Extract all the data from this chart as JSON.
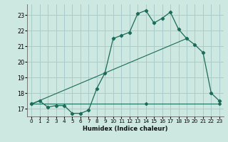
{
  "title": "",
  "xlabel": "Humidex (Indice chaleur)",
  "background_color": "#cce8e0",
  "grid_color": "#aacccc",
  "line_color": "#1a6b5a",
  "xlim": [
    -0.5,
    23.5
  ],
  "ylim": [
    16.5,
    23.7
  ],
  "yticks": [
    17,
    18,
    19,
    20,
    21,
    22,
    23
  ],
  "xticks": [
    0,
    1,
    2,
    3,
    4,
    5,
    6,
    7,
    8,
    9,
    10,
    11,
    12,
    13,
    14,
    15,
    16,
    17,
    18,
    19,
    20,
    21,
    22,
    23
  ],
  "line1_x": [
    0,
    1,
    2,
    3,
    4,
    5,
    6,
    7,
    8,
    9,
    10,
    11,
    12,
    13,
    14,
    15,
    16,
    17,
    18,
    19,
    20,
    21,
    22,
    23
  ],
  "line1_y": [
    17.3,
    17.5,
    17.1,
    17.2,
    17.2,
    16.7,
    16.7,
    16.9,
    18.3,
    19.3,
    21.5,
    21.7,
    21.9,
    23.1,
    23.3,
    22.5,
    22.8,
    23.2,
    22.1,
    21.5,
    21.1,
    20.6,
    18.0,
    17.5
  ],
  "line2_x": [
    0,
    14,
    23
  ],
  "line2_y": [
    17.3,
    17.3,
    17.3
  ],
  "line3_x": [
    0,
    19
  ],
  "line3_y": [
    17.3,
    21.5
  ]
}
